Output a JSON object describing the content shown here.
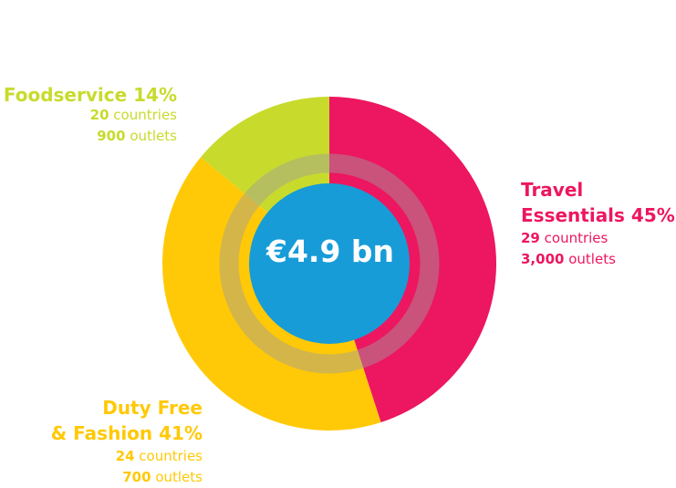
{
  "chart_data": {
    "type": "pie",
    "center_label": "€4.9 bn",
    "segments": [
      {
        "name": "Travel Essentials",
        "name_line1": "Travel",
        "name_line2": "Essentials",
        "percent": 45,
        "percent_label": "45%",
        "countries": "29",
        "countries_label": "countries",
        "outlets": "3,000",
        "outlets_label": "outlets",
        "color": "#ED1660"
      },
      {
        "name": "Duty Free & Fashion",
        "name_line1": "Duty Free",
        "name_line2": "& Fashion",
        "percent": 41,
        "percent_label": "41%",
        "countries": "24",
        "countries_label": "countries",
        "outlets": "700",
        "outlets_label": "outlets",
        "color": "#FFC907"
      },
      {
        "name": "Foodservice",
        "percent": 14,
        "percent_label": "14%",
        "countries": "20",
        "countries_label": "countries",
        "outlets": "900",
        "outlets_label": "outlets",
        "color": "#C8DB2C"
      }
    ],
    "center_color": "#179CD8",
    "ring_overlay_color": "#9E9E9E"
  }
}
